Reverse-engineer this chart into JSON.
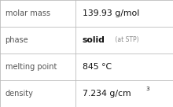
{
  "rows": [
    {
      "label": "molar mass",
      "value_parts": [
        {
          "text": "139.93 g/mol",
          "style": "normal"
        }
      ]
    },
    {
      "label": "phase",
      "value_parts": [
        {
          "text": "solid",
          "style": "bold"
        },
        {
          "text": " (at STP)",
          "style": "small"
        }
      ]
    },
    {
      "label": "melting point",
      "value_parts": [
        {
          "text": "845 °C",
          "style": "normal"
        }
      ]
    },
    {
      "label": "density",
      "value_parts": [
        {
          "text": "7.234 g/cm",
          "style": "normal"
        },
        {
          "text": "3",
          "style": "superscript"
        }
      ]
    }
  ],
  "bg_color": "#ffffff",
  "border_color": "#bbbbbb",
  "label_color": "#555555",
  "value_color": "#111111",
  "stp_color": "#888888",
  "label_fontsize": 7.0,
  "value_fontsize": 7.8,
  "bold_fontsize": 7.8,
  "small_fontsize": 5.5,
  "super_fontsize": 5.2,
  "divider_color": "#bbbbbb",
  "col_split": 0.435
}
